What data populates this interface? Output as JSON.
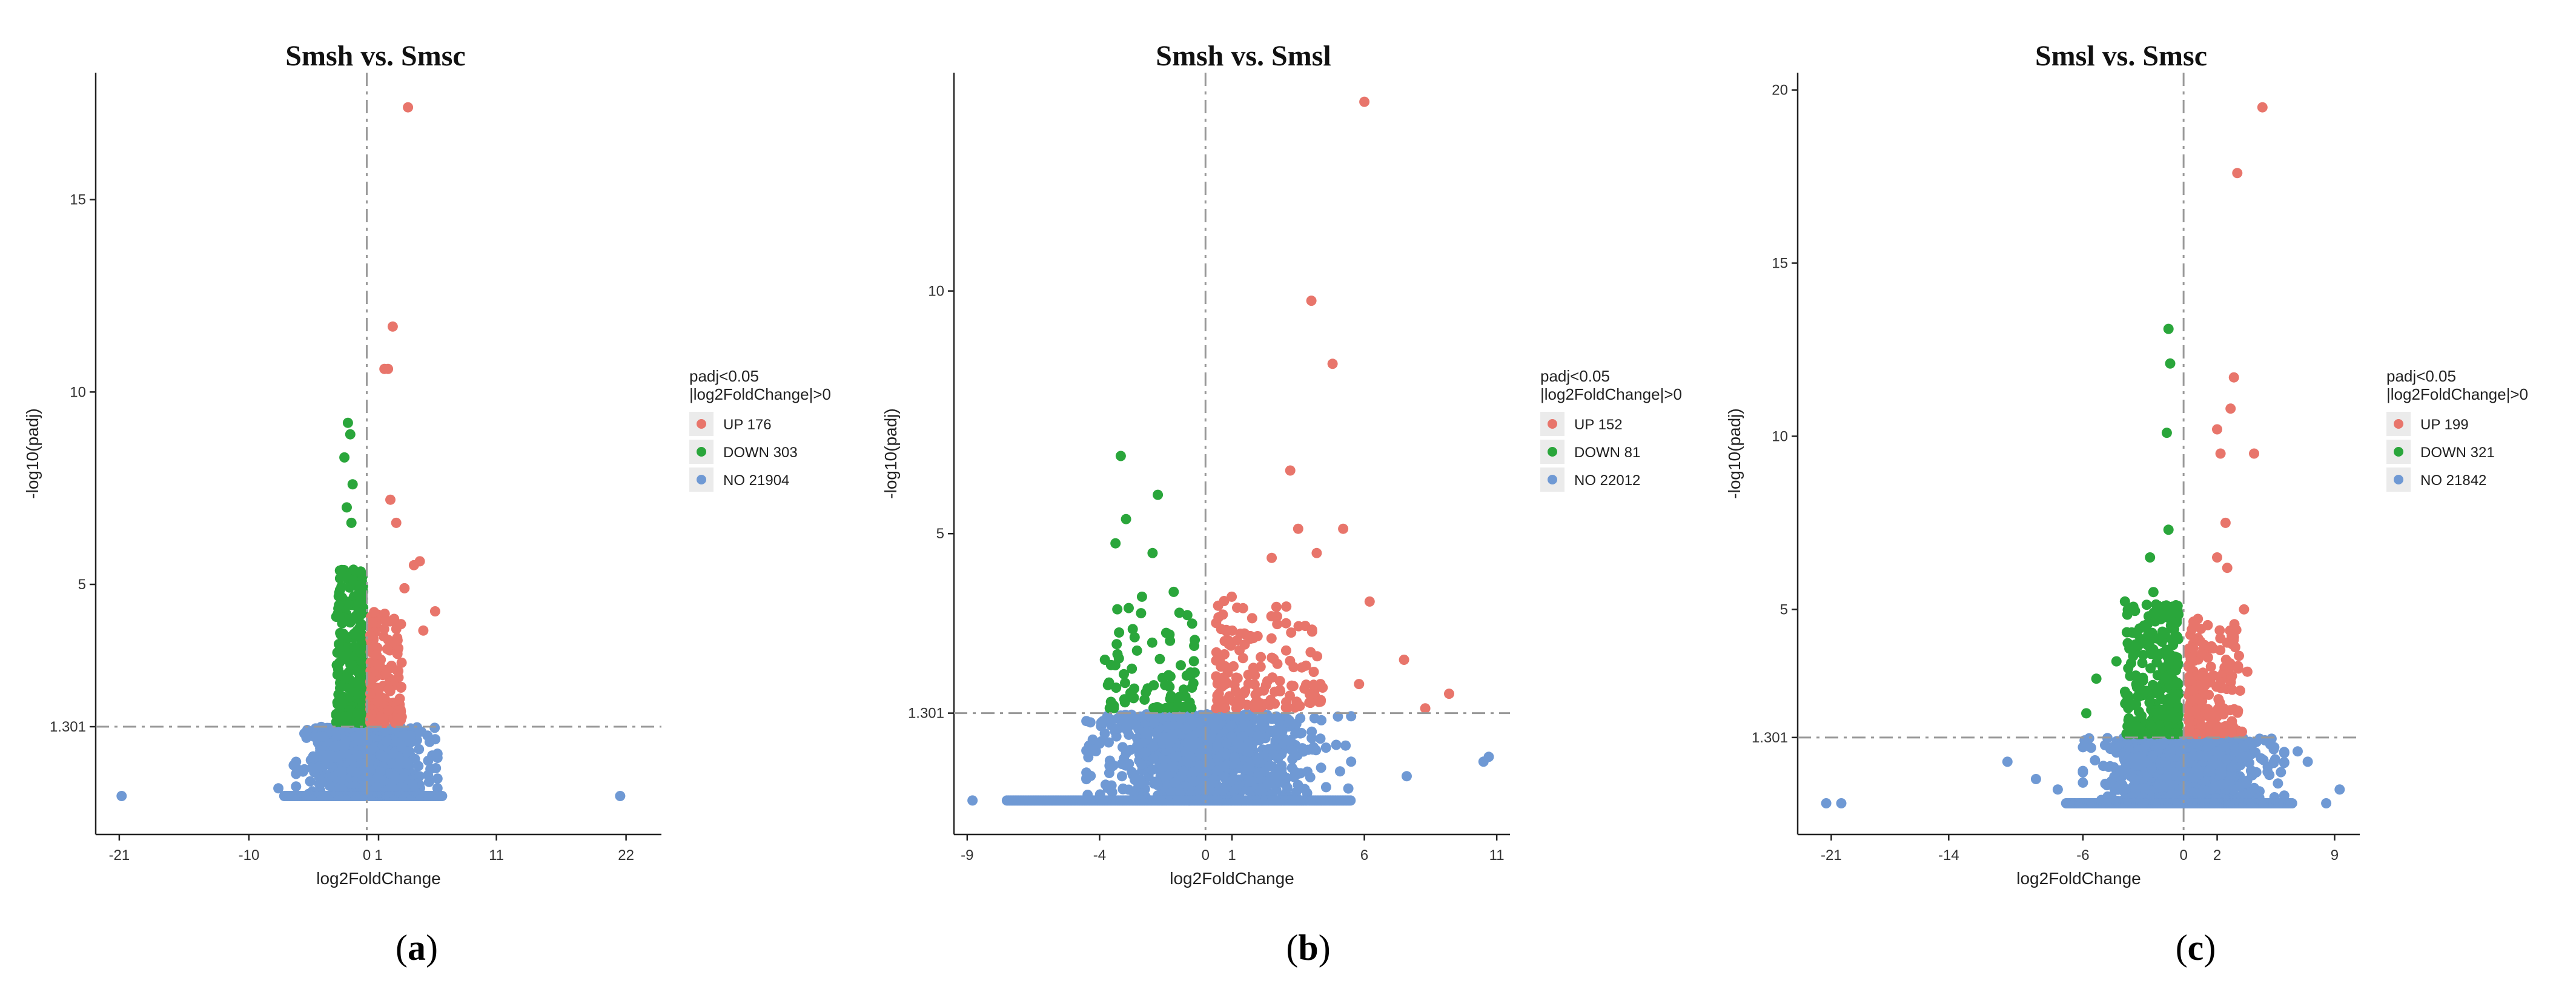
{
  "chart_data": [
    {
      "type": "scatter",
      "title": "Smsh vs. Smsc",
      "xlabel": "log2FoldChange",
      "ylabel": "-log10(padj)",
      "xlim": [
        -23,
        25
      ],
      "ylim": [
        -1.5,
        18.3
      ],
      "xticks": [
        -21,
        -10,
        0,
        1,
        11,
        22
      ],
      "xtick_labels": [
        "-21",
        "-10",
        "0",
        "1",
        "11",
        "22"
      ],
      "yticks": [
        1.301,
        5,
        10,
        15
      ],
      "ytick_labels": [
        "1.301",
        "5",
        "10",
        "15"
      ],
      "vline": 0,
      "hline": 1.301,
      "legend_title": [
        "padj<0.05",
        "|log2FoldChange|>0"
      ],
      "legend": [
        {
          "key": "up",
          "label": "UP 176",
          "color": "#e8756b"
        },
        {
          "key": "down",
          "label": "DOWN 303",
          "color": "#2aa63b"
        },
        {
          "key": "no",
          "label": "NO 21904",
          "color": "#6f99d4"
        }
      ],
      "caption": "a",
      "highlights": {
        "up": [
          [
            3.5,
            17.4
          ],
          [
            2.2,
            11.7
          ],
          [
            1.5,
            10.6
          ],
          [
            1.8,
            10.6
          ],
          [
            2.0,
            7.2
          ],
          [
            2.5,
            6.6
          ],
          [
            4.5,
            5.6
          ],
          [
            4.0,
            5.5
          ],
          [
            3.2,
            4.9
          ],
          [
            5.8,
            4.3
          ],
          [
            4.8,
            3.8
          ]
        ],
        "down": [
          [
            -1.6,
            9.2
          ],
          [
            -1.4,
            8.9
          ],
          [
            -1.9,
            8.3
          ],
          [
            -1.2,
            7.6
          ],
          [
            -1.7,
            7.0
          ],
          [
            -1.3,
            6.6
          ]
        ],
        "no": [
          [
            -20.8,
            -0.5
          ],
          [
            21.5,
            -0.5
          ],
          [
            -7.5,
            -0.3
          ],
          [
            -6.2,
            0.3
          ],
          [
            6.0,
            0.6
          ],
          [
            5.4,
            0.2
          ]
        ]
      },
      "clusters": {
        "up_x": [
          0.3,
          3.0
        ],
        "up_y": [
          1.4,
          4.3
        ],
        "up_n": 175,
        "down_x": [
          -2.6,
          -0.3
        ],
        "down_y": [
          1.4,
          5.4
        ],
        "down_n": 300,
        "no_x": [
          -6.0,
          6.0
        ],
        "no_y": [
          -0.5,
          1.3
        ],
        "no_n": 1000,
        "baseline_x": [
          -7.0,
          6.5
        ],
        "baseline_y": -0.5
      }
    },
    {
      "type": "scatter",
      "title": "Smsh vs. Smsl",
      "xlabel": "log2FoldChange",
      "ylabel": "-log10(padj)",
      "xlim": [
        -9.5,
        11.5
      ],
      "ylim": [
        -1.2,
        14.5
      ],
      "xticks": [
        -9,
        -4,
        0,
        1,
        6,
        11
      ],
      "xtick_labels": [
        "-9",
        "-4",
        "0",
        "1",
        "6",
        "11"
      ],
      "yticks": [
        1.301,
        5,
        10
      ],
      "ytick_labels": [
        "1.301",
        "5",
        "10"
      ],
      "vline": 0,
      "hline": 1.301,
      "legend_title": [
        "padj<0.05",
        "|log2FoldChange|>0"
      ],
      "legend": [
        {
          "key": "up",
          "label": "UP 152",
          "color": "#e8756b"
        },
        {
          "key": "down",
          "label": "DOWN 81",
          "color": "#2aa63b"
        },
        {
          "key": "no",
          "label": "NO 22012",
          "color": "#6f99d4"
        }
      ],
      "caption": "b",
      "highlights": {
        "up": [
          [
            6.0,
            13.9
          ],
          [
            4.0,
            9.8
          ],
          [
            4.8,
            8.5
          ],
          [
            3.2,
            6.3
          ],
          [
            3.5,
            5.1
          ],
          [
            5.2,
            5.1
          ],
          [
            2.5,
            4.5
          ],
          [
            4.2,
            4.6
          ],
          [
            7.5,
            2.4
          ],
          [
            8.3,
            1.4
          ],
          [
            9.2,
            1.7
          ],
          [
            6.2,
            3.6
          ],
          [
            5.8,
            1.9
          ]
        ],
        "down": [
          [
            -3.2,
            6.6
          ],
          [
            -3.0,
            5.3
          ],
          [
            -1.8,
            5.8
          ],
          [
            -3.4,
            4.8
          ],
          [
            -2.0,
            4.6
          ],
          [
            -2.4,
            3.7
          ],
          [
            -3.8,
            2.4
          ],
          [
            -1.2,
            3.8
          ]
        ],
        "no": [
          [
            -8.8,
            -0.5
          ],
          [
            10.7,
            0.4
          ],
          [
            10.5,
            0.3
          ],
          [
            7.6,
            0.0
          ],
          [
            5.5,
            0.3
          ]
        ]
      },
      "clusters": {
        "up_x": [
          0.4,
          4.5
        ],
        "up_y": [
          1.4,
          3.7
        ],
        "up_n": 150,
        "down_x": [
          -3.8,
          -0.4
        ],
        "down_y": [
          1.4,
          3.5
        ],
        "down_n": 75,
        "no_x": [
          -4.5,
          5.5
        ],
        "no_y": [
          -0.5,
          1.3
        ],
        "no_n": 1000,
        "baseline_x": [
          -7.5,
          5.5
        ],
        "baseline_y": -0.5
      }
    },
    {
      "type": "scatter",
      "title": "Smsl vs. Smsc",
      "xlabel": "log2FoldChange",
      "ylabel": "-log10(padj)",
      "xlim": [
        -23,
        10.5
      ],
      "ylim": [
        -1.5,
        20.5
      ],
      "xticks": [
        -21,
        -14,
        -6,
        0,
        2,
        9
      ],
      "xtick_labels": [
        "-21",
        "-14",
        "-6",
        "0",
        "2",
        "9"
      ],
      "yticks": [
        1.301,
        5,
        10,
        15,
        20
      ],
      "ytick_labels": [
        "1.301",
        "5",
        "10",
        "15",
        "20"
      ],
      "vline": 0,
      "hline": 1.301,
      "legend_title": [
        "padj<0.05",
        "|log2FoldChange|>0"
      ],
      "legend": [
        {
          "key": "up",
          "label": "UP 199",
          "color": "#e8756b"
        },
        {
          "key": "down",
          "label": "DOWN 321",
          "color": "#2aa63b"
        },
        {
          "key": "no",
          "label": "NO 21842",
          "color": "#6f99d4"
        }
      ],
      "caption": "c",
      "highlights": {
        "up": [
          [
            4.7,
            19.5
          ],
          [
            3.2,
            17.6
          ],
          [
            3.0,
            11.7
          ],
          [
            2.8,
            10.8
          ],
          [
            2.0,
            10.2
          ],
          [
            4.2,
            9.5
          ],
          [
            2.2,
            9.5
          ],
          [
            2.5,
            7.5
          ],
          [
            2.0,
            6.5
          ],
          [
            2.6,
            6.2
          ],
          [
            3.6,
            5.0
          ],
          [
            3.0,
            4.2
          ],
          [
            3.8,
            3.2
          ]
        ],
        "down": [
          [
            -0.9,
            13.1
          ],
          [
            -0.8,
            12.1
          ],
          [
            -1.0,
            10.1
          ],
          [
            -0.9,
            7.3
          ],
          [
            -2.0,
            6.5
          ],
          [
            -1.8,
            5.5
          ],
          [
            -2.8,
            4.3
          ],
          [
            -4.0,
            3.5
          ],
          [
            -5.2,
            3.0
          ],
          [
            -3.3,
            3.3
          ],
          [
            -5.8,
            2.0
          ]
        ],
        "no": [
          [
            -21.3,
            -0.6
          ],
          [
            -20.4,
            -0.6
          ],
          [
            -10.5,
            0.6
          ],
          [
            -8.8,
            0.1
          ],
          [
            -7.5,
            -0.2
          ],
          [
            8.5,
            -0.6
          ],
          [
            9.3,
            -0.2
          ],
          [
            6.8,
            0.9
          ],
          [
            7.4,
            0.6
          ],
          [
            5.8,
            0.3
          ]
        ]
      },
      "clusters": {
        "up_x": [
          0.3,
          3.5
        ],
        "up_y": [
          1.4,
          4.8
        ],
        "up_n": 195,
        "down_x": [
          -3.5,
          -0.3
        ],
        "down_y": [
          1.4,
          5.3
        ],
        "down_n": 315,
        "no_x": [
          -6.0,
          6.0
        ],
        "no_y": [
          -0.6,
          1.3
        ],
        "no_n": 1000,
        "baseline_x": [
          -7.0,
          6.5
        ],
        "baseline_y": -0.6
      }
    }
  ]
}
